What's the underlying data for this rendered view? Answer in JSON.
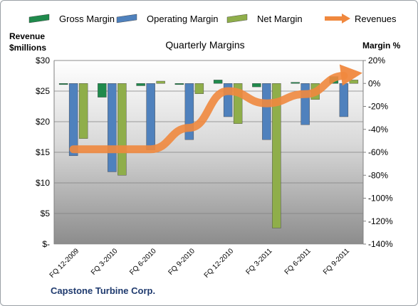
{
  "chart_data": {
    "type": "bar",
    "title": "Quarterly Margins",
    "categories": [
      "FQ 12-2009",
      "FQ 3-2010",
      "FQ 6-2010",
      "FQ 9-2010",
      "FQ 12-2010",
      "FQ 3-2011",
      "FQ 6-2011",
      "FQ 9-2011"
    ],
    "series": [
      {
        "name": "Gross Margin",
        "axis": "right",
        "color": "#1f8a4c",
        "values": [
          -1,
          -12,
          -2,
          -1,
          3,
          -3,
          1,
          6
        ]
      },
      {
        "name": "Operating Margin",
        "axis": "right",
        "color": "#4f81bd",
        "values": [
          -63,
          -77,
          -58,
          -49,
          -29,
          -49,
          -36,
          -29
        ]
      },
      {
        "name": "Net Margin",
        "axis": "right",
        "color": "#8fae4a",
        "values": [
          -48,
          -80,
          2,
          -9,
          -35,
          -126,
          -14,
          3
        ]
      },
      {
        "name": "Revenues",
        "axis": "left",
        "type": "line",
        "color": "#f0883e",
        "values": [
          15.5,
          15.5,
          15.5,
          19,
          25,
          23,
          24.5,
          27.5
        ]
      }
    ],
    "y_left": {
      "label_line1": "Revenue",
      "label_line2": "$millions",
      "range": [
        0,
        30
      ],
      "ticks": [
        "$-",
        "$5",
        "$10",
        "$15",
        "$20",
        "$25",
        "$30"
      ]
    },
    "y_right": {
      "label": "Margin %",
      "range": [
        -140,
        20
      ],
      "ticks": [
        "-140%",
        "-120%",
        "-100%",
        "-80%",
        "-60%",
        "-40%",
        "-20%",
        "0%",
        "20%"
      ]
    },
    "legend_position": "top",
    "grid": true
  },
  "footer": {
    "company": "Capstone Turbine Corp."
  }
}
